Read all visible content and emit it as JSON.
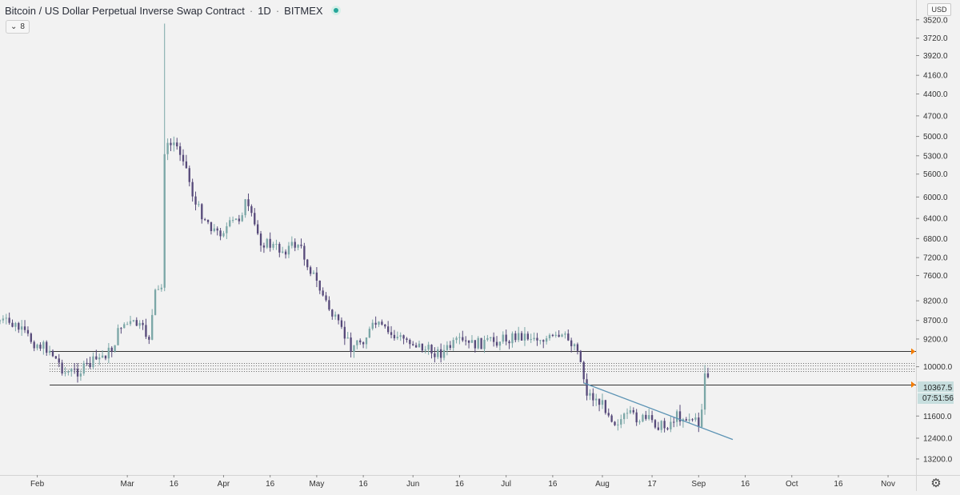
{
  "header": {
    "title": "Bitcoin / US Dollar Perpetual Inverse Swap Contract",
    "interval": "1D",
    "exchange": "BITMEX",
    "separator": "·",
    "status_color": "#26a69a"
  },
  "collapse_button": {
    "icon": "chevron-down-icon",
    "label": "8"
  },
  "currency_label": "USD",
  "settings_icon": "gear-icon",
  "colors": {
    "background": "#f2f2f2",
    "up_candle": "#7ba7a7",
    "down_candle": "#574a7a",
    "level_lines": "#333333",
    "trendline": "#5b93b4",
    "marker": "#f57c00"
  },
  "chart_data": {
    "type": "candlestick",
    "price_axis": {
      "position": "right",
      "inverted": true,
      "scale": "log",
      "ticks": [
        3520.0,
        3720.0,
        3920.0,
        4160.0,
        4400.0,
        4700.0,
        5000.0,
        5300.0,
        5600.0,
        6000.0,
        6400.0,
        6800.0,
        7200.0,
        7600.0,
        8200.0,
        8700.0,
        9200.0,
        10000.0,
        11600.0,
        12400.0,
        13200.0
      ],
      "tick_labels": [
        "3520.0",
        "3720.0",
        "3920.0",
        "4160.0",
        "4400.0",
        "4700.0",
        "5000.0",
        "5300.0",
        "5600.0",
        "6000.0",
        "6400.0",
        "6800.0",
        "7200.0",
        "7600.0",
        "8200.0",
        "8700.0",
        "9200.0",
        "10000.0",
        "11600.0",
        "12400.0",
        "13200.0"
      ],
      "range": [
        3440,
        13600
      ]
    },
    "time_axis": {
      "tick_labels": [
        "Feb",
        "Mar",
        "16",
        "Apr",
        "16",
        "May",
        "16",
        "Jun",
        "16",
        "Jul",
        "16",
        "Aug",
        "17",
        "Sep",
        "16",
        "Oct",
        "16",
        "Nov"
      ],
      "tick_dates": [
        "2020-02-01",
        "2020-03-01",
        "2020-03-16",
        "2020-04-01",
        "2020-04-16",
        "2020-05-01",
        "2020-05-16",
        "2020-06-01",
        "2020-06-16",
        "2020-07-01",
        "2020-07-16",
        "2020-08-01",
        "2020-08-17",
        "2020-09-01",
        "2020-09-16",
        "2020-10-01",
        "2020-10-16",
        "2020-11-01"
      ],
      "range": [
        "2020-01-20",
        "2020-11-10"
      ]
    },
    "price_label": {
      "value": "10367.5",
      "countdown": "07:51:56",
      "price": 10367.5
    },
    "horizontal_levels": [
      {
        "price": 9550,
        "style": "solid",
        "from": "2020-02-05"
      },
      {
        "price": 9880,
        "style": "dotted",
        "from": "2020-02-05"
      },
      {
        "price": 9960,
        "style": "dotted",
        "from": "2020-02-05"
      },
      {
        "price": 10050,
        "style": "dotted",
        "from": "2020-02-05"
      },
      {
        "price": 10130,
        "style": "dotted",
        "from": "2020-02-05"
      },
      {
        "price": 10550,
        "style": "solid",
        "from": "2020-02-05"
      }
    ],
    "trendline": {
      "from": [
        "2020-07-26",
        10500
      ],
      "to": [
        "2020-09-12",
        12450
      ]
    },
    "anchors": [
      [
        "2020-01-20",
        8700
      ],
      [
        "2020-01-25",
        8850
      ],
      [
        "2020-01-31",
        9300
      ],
      [
        "2020-02-05",
        9500
      ],
      [
        "2020-02-10",
        10180
      ],
      [
        "2020-02-15",
        10120
      ],
      [
        "2020-02-20",
        9800
      ],
      [
        "2020-02-25",
        9500
      ],
      [
        "2020-02-28",
        8800
      ],
      [
        "2020-03-04",
        8800
      ],
      [
        "2020-03-08",
        9150
      ],
      [
        "2020-03-10",
        8050
      ],
      [
        "2020-03-12",
        7900
      ],
      [
        "2020-03-13",
        5200
      ],
      [
        "2020-03-16",
        5100
      ],
      [
        "2020-03-19",
        5300
      ],
      [
        "2020-03-23",
        6150
      ],
      [
        "2020-03-30",
        6700
      ],
      [
        "2020-04-06",
        6400
      ],
      [
        "2020-04-08",
        6100
      ],
      [
        "2020-04-13",
        6850
      ],
      [
        "2020-04-20",
        7050
      ],
      [
        "2020-04-25",
        6900
      ],
      [
        "2020-04-30",
        7600
      ],
      [
        "2020-05-05",
        8400
      ],
      [
        "2020-05-09",
        9000
      ],
      [
        "2020-05-12",
        9400
      ],
      [
        "2020-05-16",
        9200
      ],
      [
        "2020-05-20",
        8800
      ],
      [
        "2020-05-25",
        9100
      ],
      [
        "2020-05-31",
        9250
      ],
      [
        "2020-06-05",
        9500
      ],
      [
        "2020-06-10",
        9600
      ],
      [
        "2020-06-15",
        9300
      ],
      [
        "2020-06-20",
        9350
      ],
      [
        "2020-06-25",
        9300
      ],
      [
        "2020-06-30",
        9200
      ],
      [
        "2020-07-06",
        9100
      ],
      [
        "2020-07-10",
        9150
      ],
      [
        "2020-07-15",
        9200
      ],
      [
        "2020-07-20",
        9180
      ],
      [
        "2020-07-24",
        9400
      ],
      [
        "2020-07-27",
        10800
      ],
      [
        "2020-08-02",
        11300
      ],
      [
        "2020-08-05",
        11800
      ],
      [
        "2020-08-10",
        11600
      ],
      [
        "2020-08-17",
        11800
      ],
      [
        "2020-08-21",
        12000
      ],
      [
        "2020-08-25",
        11600
      ],
      [
        "2020-08-30",
        11700
      ],
      [
        "2020-09-01",
        11900
      ],
      [
        "2020-09-02",
        11300
      ],
      [
        "2020-09-03",
        10200
      ],
      [
        "2020-09-04",
        10300
      ]
    ]
  }
}
